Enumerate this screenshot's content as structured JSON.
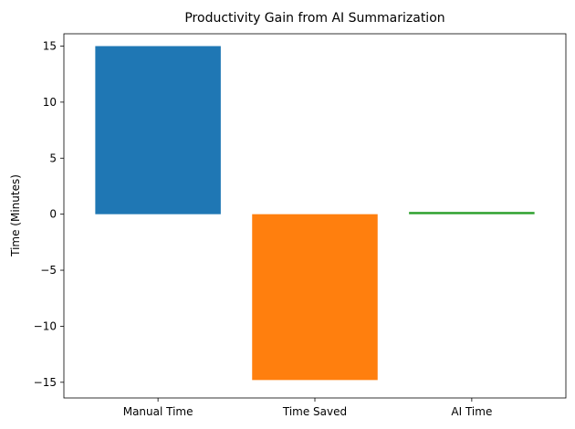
{
  "chart_data": {
    "type": "bar",
    "title": "Productivity Gain from AI Summarization",
    "xlabel": "",
    "ylabel": "Time (Minutes)",
    "categories": [
      "Manual Time",
      "Time Saved",
      "AI Time"
    ],
    "values": [
      15,
      -14.8,
      0.2
    ],
    "colors": [
      "#1f77b4",
      "#ff7f0e",
      "#2ca02c"
    ],
    "ylim": [
      -16.4,
      16.1
    ],
    "yticks": [
      -15,
      -10,
      -5,
      0,
      5,
      10,
      15
    ],
    "grid": false
  }
}
